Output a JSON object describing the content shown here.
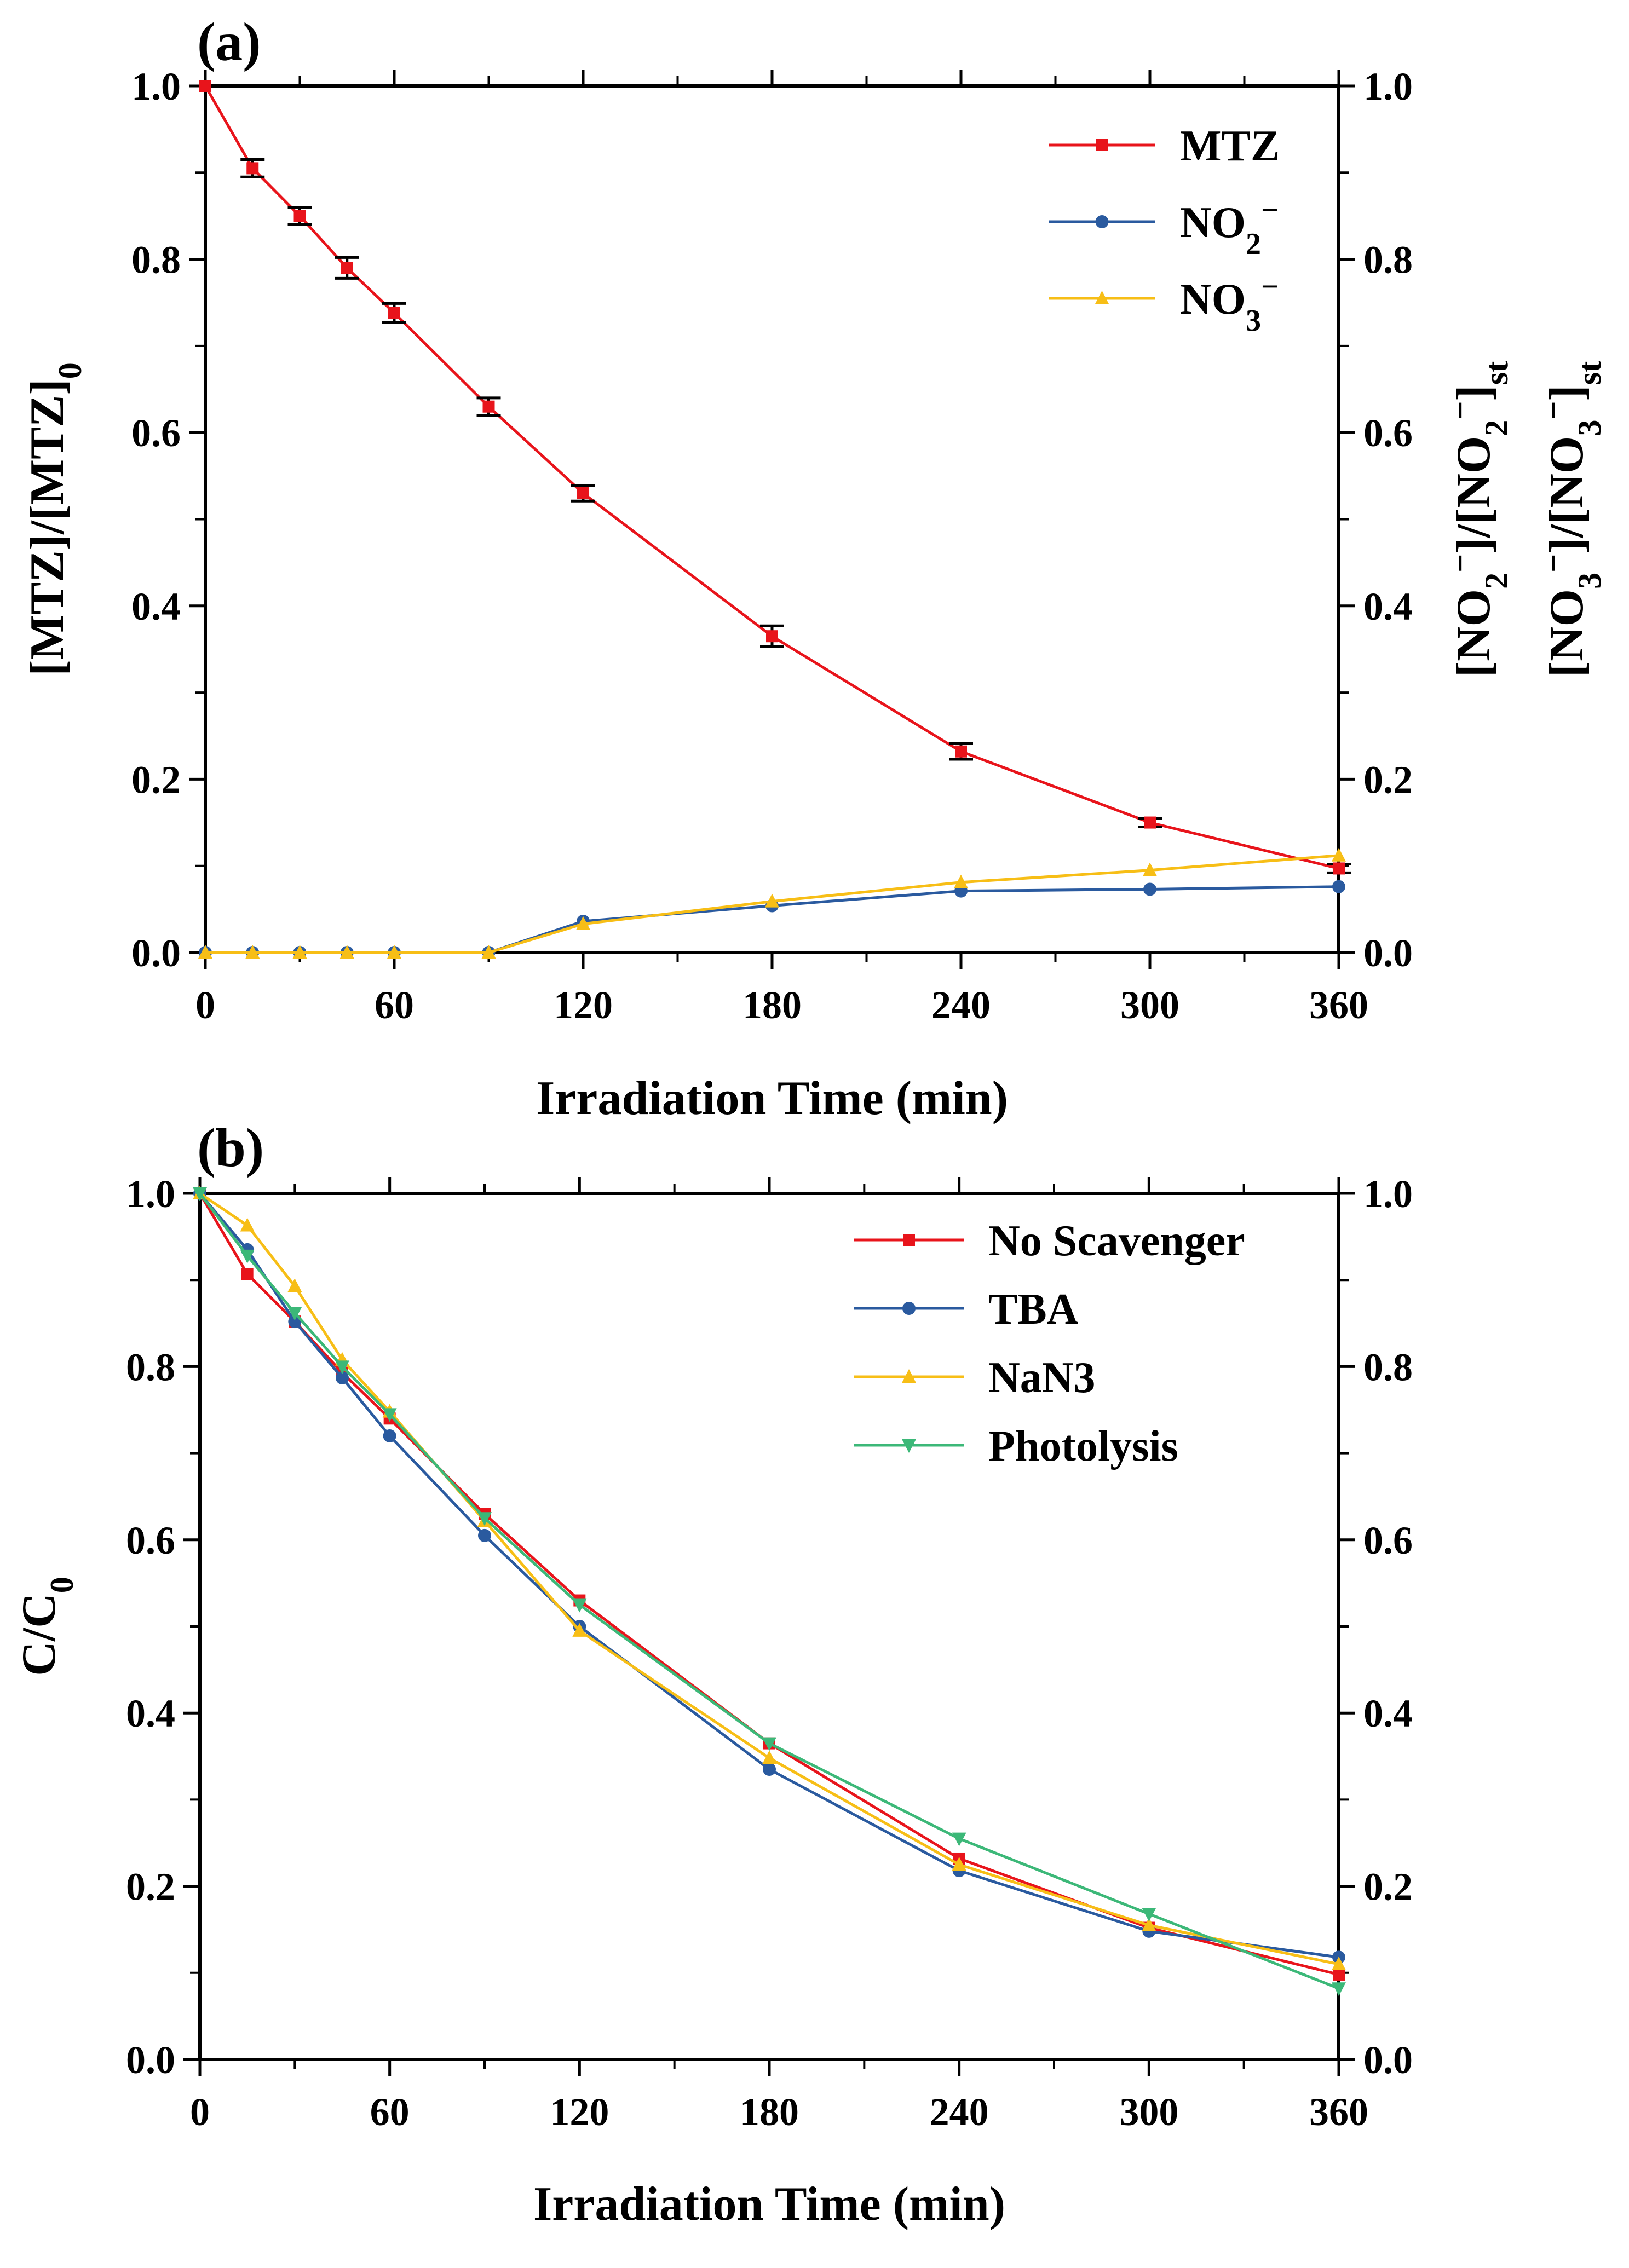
{
  "chart_data": [
    {
      "panel_label": "(a)",
      "type": "line",
      "xlabel": "Irradiation Time (min)",
      "ylabel": "[MTZ]/[MTZ]",
      "ylabel_sub": "0",
      "ylabel_right_1": "[NO",
      "ylabel_right_1_sub": "2",
      "ylabel_right_1_sup": "−",
      "ylabel_right_1_mid": "]/[NO",
      "ylabel_right_1_end": "]",
      "ylabel_right_1_end_sub": "st",
      "ylabel_right_2": "[NO",
      "ylabel_right_2_sub": "3",
      "ylabel_right_2_sup": "−",
      "ylabel_right_2_mid": "]/[NO",
      "ylabel_right_2_end": "]",
      "ylabel_right_2_end_sub": "st",
      "xlim": [
        0,
        360
      ],
      "ylim": [
        0,
        1.0
      ],
      "xticks": [
        "0",
        "60",
        "120",
        "180",
        "240",
        "300",
        "360"
      ],
      "yticks": [
        "0.0",
        "0.2",
        "0.4",
        "0.6",
        "0.8",
        "1.0"
      ],
      "legend_position": "top-right",
      "x": [
        0,
        15,
        30,
        45,
        60,
        90,
        120,
        180,
        240,
        300,
        360
      ],
      "series": [
        {
          "name": "MTZ",
          "legend_base": "MTZ",
          "legend_sub": "",
          "legend_sup": "",
          "color": "#e8141b",
          "marker": "square",
          "error_bars": true,
          "values": [
            1.0,
            0.905,
            0.85,
            0.79,
            0.738,
            0.63,
            0.53,
            0.365,
            0.232,
            0.15,
            0.097
          ],
          "errors": [
            0.0,
            0.01,
            0.01,
            0.012,
            0.011,
            0.01,
            0.009,
            0.012,
            0.009,
            0.005,
            0.005
          ]
        },
        {
          "name": "NO2−",
          "legend_base": "NO",
          "legend_sub": "2",
          "legend_sup": "−",
          "color": "#2a5a9f",
          "marker": "circle",
          "error_bars": false,
          "values": [
            0.0,
            0.0,
            0.0,
            0.0,
            0.0,
            0.0,
            0.036,
            0.054,
            0.071,
            0.073,
            0.076
          ]
        },
        {
          "name": "NO3−",
          "legend_base": "NO",
          "legend_sub": "3",
          "legend_sup": "−",
          "color": "#f7be16",
          "marker": "triangle-up",
          "error_bars": false,
          "values": [
            0.0,
            0.0,
            0.0,
            0.0,
            0.0,
            0.0,
            0.033,
            0.059,
            0.081,
            0.095,
            0.112
          ]
        }
      ]
    },
    {
      "panel_label": "(b)",
      "type": "line",
      "xlabel": "Irradiation Time (min)",
      "ylabel": "C/C",
      "ylabel_sub": "0",
      "xlim": [
        0,
        360
      ],
      "ylim": [
        0,
        1.0
      ],
      "xticks": [
        "0",
        "60",
        "120",
        "180",
        "240",
        "300",
        "360"
      ],
      "yticks": [
        "0.0",
        "0.2",
        "0.4",
        "0.6",
        "0.8",
        "1.0"
      ],
      "legend_position": "top-right",
      "x": [
        0,
        15,
        30,
        45,
        60,
        90,
        120,
        180,
        240,
        300,
        360
      ],
      "series": [
        {
          "name": "No Scavenger",
          "legend_base": "No Scavenger",
          "legend_sub": "",
          "legend_sup": "",
          "color": "#e8141b",
          "marker": "square",
          "values": [
            1.0,
            0.907,
            0.852,
            0.793,
            0.74,
            0.63,
            0.53,
            0.365,
            0.232,
            0.152,
            0.098
          ]
        },
        {
          "name": "TBA",
          "legend_base": "TBA",
          "legend_sub": "",
          "legend_sup": "",
          "color": "#2a5a9f",
          "marker": "circle",
          "values": [
            1.0,
            0.935,
            0.852,
            0.787,
            0.72,
            0.605,
            0.5,
            0.335,
            0.218,
            0.148,
            0.118
          ]
        },
        {
          "name": "NaN3",
          "legend_base": "NaN3",
          "legend_sub": "",
          "legend_sup": "",
          "color": "#f7be16",
          "marker": "triangle-up",
          "values": [
            1.0,
            0.963,
            0.893,
            0.808,
            0.748,
            0.622,
            0.495,
            0.348,
            0.225,
            0.155,
            0.11
          ]
        },
        {
          "name": "Photolysis",
          "legend_base": "Photolysis",
          "legend_sub": "",
          "legend_sup": "",
          "color": "#3cb878",
          "marker": "triangle-down",
          "values": [
            1.0,
            0.928,
            0.862,
            0.8,
            0.745,
            0.625,
            0.525,
            0.365,
            0.255,
            0.168,
            0.082
          ]
        }
      ]
    }
  ]
}
